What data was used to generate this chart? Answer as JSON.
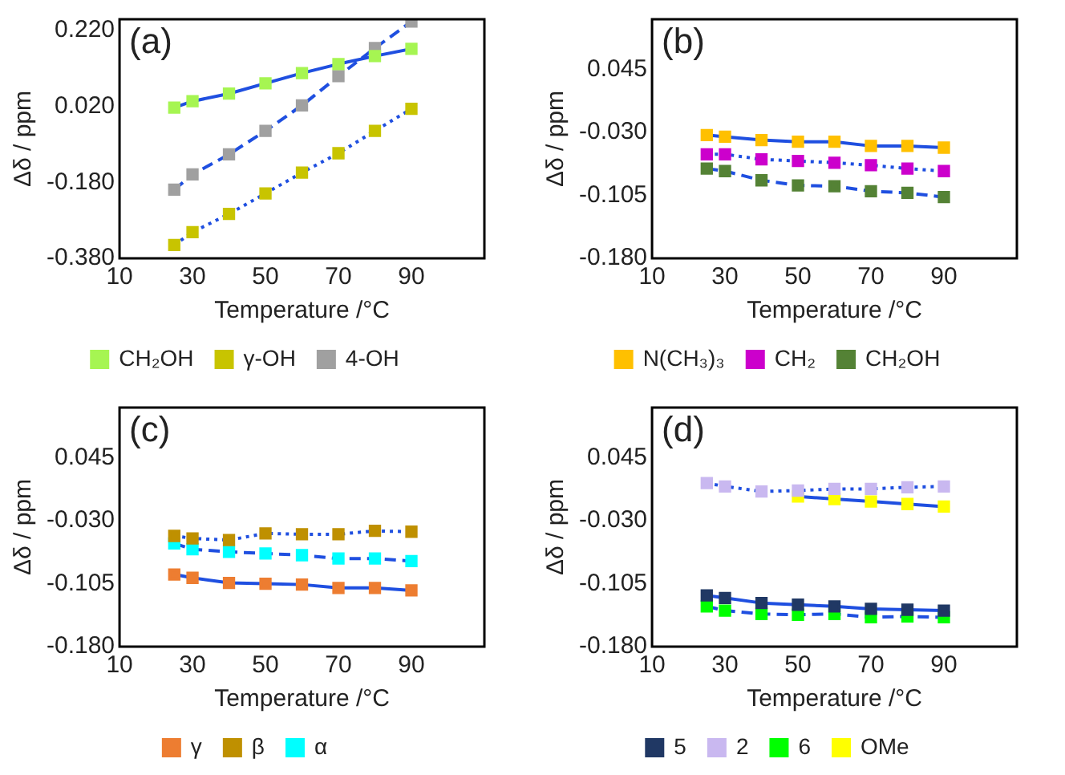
{
  "chart_data": [
    {
      "type": "line",
      "annotations": [
        "(a)"
      ],
      "xlabel": "Temperature /°C",
      "ylabel": "Δδ / ppm",
      "x": [
        25,
        30,
        40,
        50,
        60,
        70,
        80,
        90
      ],
      "xlim": [
        10,
        110
      ],
      "xticks": [
        10,
        30,
        50,
        70,
        90
      ],
      "ylim": [
        -0.38,
        0.25
      ],
      "yticks": [
        {
          "value": -0.38,
          "label": "-0.380"
        },
        {
          "value": -0.18,
          "label": "-0.180"
        },
        {
          "value": 0.02,
          "label": "0.020"
        },
        {
          "value": 0.22,
          "label": "0.220"
        }
      ],
      "grid": false,
      "legend": "bottom",
      "marker": "square",
      "series": [
        {
          "name": "CH₂OH",
          "color": "#a6f552",
          "line_style": "solid",
          "values": [
            0.017,
            0.034,
            0.054,
            0.081,
            0.108,
            0.132,
            0.153,
            0.172
          ]
        },
        {
          "name": "γ-OH",
          "color": "#c8c400",
          "line_style": "dotted",
          "values": [
            -0.345,
            -0.311,
            -0.263,
            -0.209,
            -0.154,
            -0.103,
            -0.044,
            0.014
          ]
        },
        {
          "name": "4-OH",
          "color": "#a0a0a0",
          "line_style": "dashed",
          "values": [
            -0.199,
            -0.159,
            -0.106,
            -0.044,
            0.023,
            0.1,
            0.174,
            0.244
          ]
        }
      ]
    },
    {
      "type": "line",
      "annotations": [
        "(b)"
      ],
      "xlabel": "Temperature /°C",
      "ylabel": "Δδ / ppm",
      "x": [
        25,
        30,
        40,
        50,
        60,
        70,
        80,
        90
      ],
      "xlim": [
        10,
        110
      ],
      "xticks": [
        10,
        30,
        50,
        70,
        90
      ],
      "ylim": [
        -0.18,
        0.105
      ],
      "yticks": [
        {
          "value": -0.18,
          "label": "-0.180"
        },
        {
          "value": -0.105,
          "label": "-0.105"
        },
        {
          "value": -0.03,
          "label": "-0.030"
        },
        {
          "value": 0.045,
          "label": "0.045"
        }
      ],
      "grid": false,
      "legend": "bottom",
      "marker": "square",
      "series": [
        {
          "name": "N(CH₃)₃",
          "color": "#ffc000",
          "line_style": "solid",
          "values": [
            -0.033,
            -0.035,
            -0.039,
            -0.041,
            -0.041,
            -0.046,
            -0.046,
            -0.048
          ]
        },
        {
          "name": "CH₂",
          "color": "#cc00cc",
          "line_style": "dotted",
          "values": [
            -0.056,
            -0.056,
            -0.062,
            -0.064,
            -0.066,
            -0.069,
            -0.073,
            -0.076
          ]
        },
        {
          "name": "CH₂OH",
          "color": "#548235",
          "line_style": "dashed",
          "values": [
            -0.073,
            -0.076,
            -0.087,
            -0.093,
            -0.094,
            -0.1,
            -0.102,
            -0.107
          ]
        }
      ]
    },
    {
      "type": "line",
      "annotations": [
        "(c)"
      ],
      "xlabel": "Temperature /°C",
      "ylabel": "Δδ / ppm",
      "x": [
        25,
        30,
        40,
        50,
        60,
        70,
        80,
        90
      ],
      "xlim": [
        10,
        110
      ],
      "xticks": [
        10,
        30,
        50,
        70,
        90
      ],
      "ylim": [
        -0.18,
        0.105
      ],
      "yticks": [
        {
          "value": -0.18,
          "label": "-0.180"
        },
        {
          "value": -0.105,
          "label": "-0.105"
        },
        {
          "value": -0.03,
          "label": "-0.030"
        },
        {
          "value": 0.045,
          "label": "0.045"
        }
      ],
      "grid": false,
      "legend": "bottom",
      "marker": "square",
      "series": [
        {
          "name": "γ",
          "color": "#ed7d31",
          "line_style": "solid",
          "values": [
            -0.094,
            -0.098,
            -0.104,
            -0.105,
            -0.106,
            -0.11,
            -0.11,
            -0.113
          ]
        },
        {
          "name": "β",
          "color": "#bf9000",
          "line_style": "dotted",
          "values": [
            -0.048,
            -0.051,
            -0.053,
            -0.045,
            -0.046,
            -0.046,
            -0.042,
            -0.043
          ]
        },
        {
          "name": "α",
          "color": "#00ffff",
          "line_style": "dashed",
          "values": [
            -0.057,
            -0.064,
            -0.067,
            -0.069,
            -0.071,
            -0.075,
            -0.075,
            -0.078
          ]
        }
      ]
    },
    {
      "type": "line",
      "annotations": [
        "(d)"
      ],
      "xlabel": "Temperature /°C",
      "ylabel": "Δδ / ppm",
      "x": [
        25,
        30,
        40,
        50,
        60,
        70,
        80,
        90
      ],
      "xlim": [
        10,
        110
      ],
      "xticks": [
        10,
        30,
        50,
        70,
        90
      ],
      "ylim": [
        -0.18,
        0.105
      ],
      "yticks": [
        {
          "value": -0.18,
          "label": "-0.180"
        },
        {
          "value": -0.105,
          "label": "-0.105"
        },
        {
          "value": -0.03,
          "label": "-0.030"
        },
        {
          "value": 0.045,
          "label": "0.045"
        }
      ],
      "grid": false,
      "legend": "bottom",
      "marker": "square",
      "series": [
        {
          "name": "5",
          "color": "#203864",
          "line_style": "solid",
          "values": [
            -0.119,
            -0.122,
            -0.128,
            -0.13,
            -0.132,
            -0.135,
            -0.136,
            -0.137
          ]
        },
        {
          "name": "2",
          "color": "#c9b8f0",
          "line_style": "dotted",
          "values": [
            0.015,
            0.011,
            0.005,
            0.006,
            0.008,
            0.008,
            0.01,
            0.011
          ]
        },
        {
          "name": "6",
          "color": "#00ff00",
          "line_style": "dashed",
          "values": [
            -0.132,
            -0.137,
            -0.141,
            -0.142,
            -0.141,
            -0.145,
            -0.144,
            -0.145
          ]
        },
        {
          "name": "OMe",
          "color": "#ffff00",
          "line_style": "solid",
          "values": [
            null,
            null,
            null,
            -0.001,
            -0.004,
            -0.007,
            -0.01,
            -0.013
          ]
        }
      ]
    }
  ]
}
